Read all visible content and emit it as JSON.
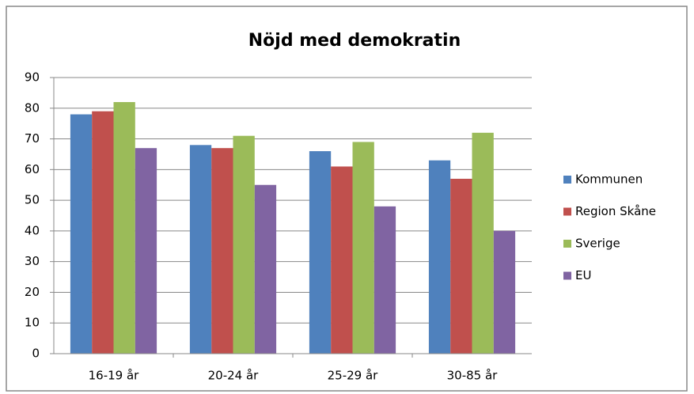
{
  "chart_data": {
    "type": "bar",
    "title": "Nöjd med demokratin",
    "categories": [
      "16-19  år",
      "20-24 år",
      "25-29 år",
      "30-85 år"
    ],
    "series": [
      {
        "name": "Kommunen",
        "color": "#4f81bd",
        "values": [
          78,
          68,
          66,
          63
        ]
      },
      {
        "name": "Region Skåne",
        "color": "#c0504d",
        "values": [
          79,
          67,
          61,
          57
        ]
      },
      {
        "name": "Sverige",
        "color": "#9bbb59",
        "values": [
          82,
          71,
          69,
          72
        ]
      },
      {
        "name": "EU",
        "color": "#8064a2",
        "values": [
          67,
          55,
          48,
          40
        ]
      }
    ],
    "ylim": [
      0,
      90
    ],
    "yticks": [
      0,
      10,
      20,
      30,
      40,
      50,
      60,
      70,
      80,
      90
    ],
    "grid": true,
    "legend": "right"
  }
}
